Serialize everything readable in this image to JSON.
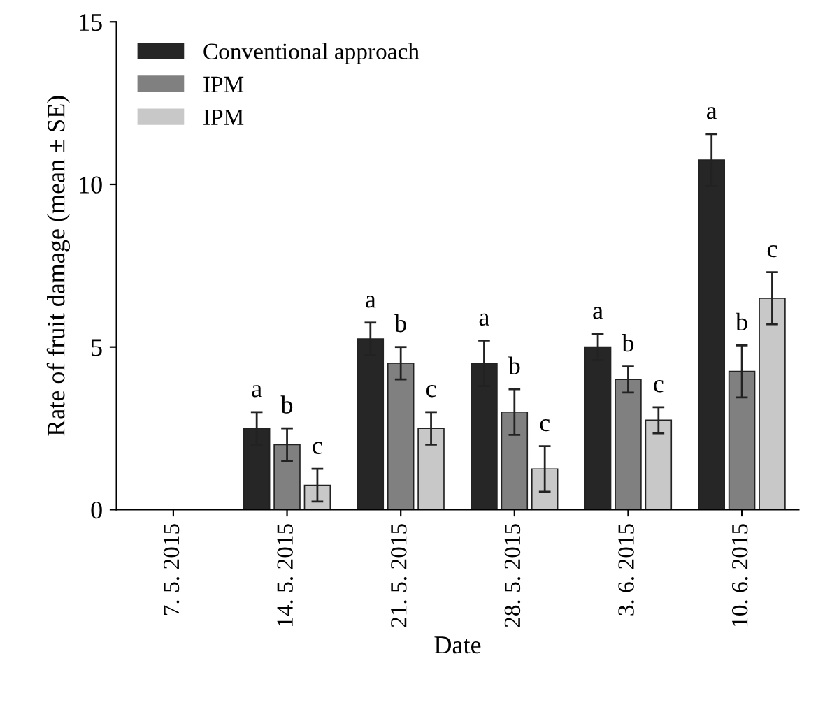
{
  "chart_data": {
    "type": "bar",
    "xlabel": "Date",
    "ylabel": "Rate of fruit damage (mean ± SE)",
    "categories": [
      "7. 5. 2015",
      "14. 5. 2015",
      "21. 5. 2015",
      "28. 5. 2015",
      "3. 6. 2015",
      "10. 6. 2015"
    ],
    "series": [
      {
        "name": "Conventional approach",
        "color": "#262626",
        "values": [
          0,
          2.5,
          5.25,
          4.5,
          5.0,
          10.75
        ],
        "errors": [
          null,
          0.5,
          0.5,
          0.7,
          0.4,
          0.8
        ],
        "value_labels": [
          null,
          "a",
          "a",
          "a",
          "a",
          "a"
        ]
      },
      {
        "name": "IPM",
        "color": "#808080",
        "values": [
          0,
          2.0,
          4.5,
          3.0,
          4.0,
          4.25
        ],
        "errors": [
          null,
          0.5,
          0.5,
          0.7,
          0.4,
          0.8
        ],
        "value_labels": [
          null,
          "b",
          "b",
          "b",
          "b",
          "b"
        ]
      },
      {
        "name": "IPM",
        "color": "#c8c8c8",
        "values": [
          0,
          0.75,
          2.5,
          1.25,
          2.75,
          6.5
        ],
        "errors": [
          null,
          0.5,
          0.5,
          0.7,
          0.4,
          0.8
        ],
        "value_labels": [
          null,
          "c",
          "c",
          "c",
          "c",
          "c"
        ]
      }
    ],
    "ylim": [
      0,
      15
    ],
    "yticks": [
      0,
      5,
      10,
      15
    ],
    "grid": false,
    "legend": "top left"
  }
}
